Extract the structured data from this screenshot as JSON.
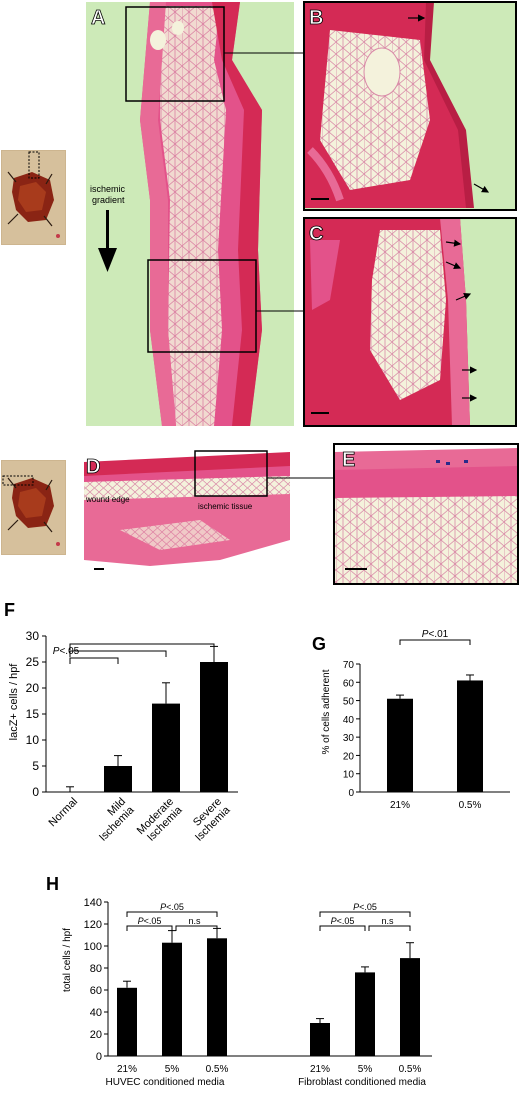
{
  "panels": {
    "A": "A",
    "B": "B",
    "C": "C",
    "D": "D",
    "E": "E",
    "F": "F",
    "G": "G",
    "H": "H"
  },
  "annotations": {
    "ischemic_gradient": [
      "ischemic",
      "gradient"
    ],
    "wound_edge": "wound edge",
    "ischemic_tissue": "ischemic tissue"
  },
  "colors": {
    "tissue_pink": "#e3528a",
    "tissue_red": "#d42a55",
    "background_green": "#cdeab8",
    "fat_cells": "#f4f2dc",
    "photo_skin": "#cdb58f",
    "wound_red": "#8a2414",
    "bar_black": "#000000"
  },
  "chart_data": [
    {
      "panel": "F",
      "type": "bar",
      "categories": [
        "Normal",
        "Mild Ischemia",
        "Moderate Ischemia",
        "Severe Ischemia"
      ],
      "category_lines": [
        [
          "Normal"
        ],
        [
          "Mild",
          "Ischemia"
        ],
        [
          "Moderate",
          "Ischemia"
        ],
        [
          "Severe",
          "Ischemia"
        ]
      ],
      "values": [
        0,
        5,
        17,
        25
      ],
      "errors": [
        1,
        2,
        4,
        3
      ],
      "ylabel": "lacZ+ cells / hpf",
      "ylim": [
        0,
        30
      ],
      "yticks": [
        0,
        5,
        10,
        15,
        20,
        25,
        30
      ],
      "significance": [
        {
          "from": 0,
          "to": 1
        },
        {
          "from": 0,
          "to": 2
        },
        {
          "from": 0,
          "to": 3
        }
      ],
      "sig_label": "P<.05",
      "grid": false
    },
    {
      "panel": "G",
      "type": "bar",
      "categories": [
        "21%",
        "0.5%"
      ],
      "values": [
        51,
        61
      ],
      "errors": [
        2,
        3
      ],
      "ylabel": "% of cells adherent",
      "ylim": [
        0,
        70
      ],
      "yticks": [
        0,
        10,
        20,
        30,
        40,
        50,
        60,
        70
      ],
      "significance": [
        {
          "from": 0,
          "to": 1
        }
      ],
      "sig_label": "P<.01",
      "grid": false
    },
    {
      "panel": "H",
      "type": "bar",
      "groups": [
        "HUVEC conditioned media",
        "Fibroblast conditioned media"
      ],
      "categories": [
        "21%",
        "5%",
        "0.5%"
      ],
      "series": [
        {
          "values": [
            62,
            103,
            107
          ],
          "errors": [
            6,
            11,
            9
          ]
        },
        {
          "values": [
            30,
            76,
            89
          ],
          "errors": [
            4,
            5,
            14
          ]
        }
      ],
      "ylabel": "total cells / hpf",
      "ylim": [
        0,
        140
      ],
      "yticks": [
        0,
        20,
        40,
        60,
        80,
        100,
        120,
        140
      ],
      "comparisons": [
        {
          "from": 0,
          "to": 1,
          "label": "P<.05"
        },
        {
          "from": 1,
          "to": 2,
          "label": "n.s"
        },
        {
          "from": 0,
          "to": 2,
          "label": "P<.05"
        }
      ],
      "grid": false
    }
  ]
}
